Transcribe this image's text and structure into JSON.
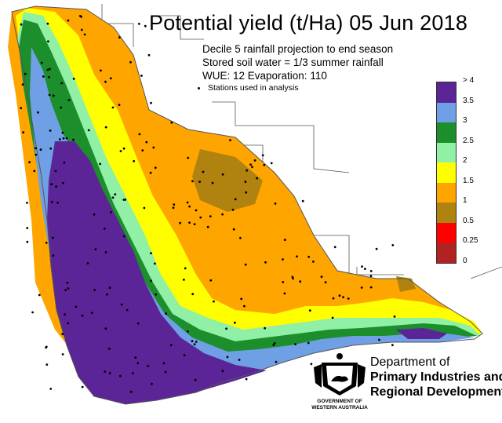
{
  "map": {
    "title": "Potential yield (t/Ha) 05 Jun 2018",
    "subtitle_1": "Decile 5 rainfall projection to end season",
    "subtitle_2": "Stored soil water = 1/3 summer rainfall",
    "subtitle_3": "WUE:  12    Evaporation:  110",
    "stations_note": "Stations used in analysis",
    "region": "South-west Western Australia grainbelt"
  },
  "legend": {
    "labels": [
      "> 4",
      "3.5",
      "3",
      "2.5",
      "2",
      "1.5",
      "1",
      "0.5",
      "0.25",
      "0"
    ],
    "colors": [
      "#5b2597",
      "#6f9fe4",
      "#1c8e2b",
      "#8ff0a6",
      "#ffff00",
      "#ffa500",
      "#b0820f",
      "#ff0000",
      "#b22222"
    ]
  },
  "colors": {
    "purple": "#5b2597",
    "blue": "#6f9fe4",
    "green": "#1c8e2b",
    "lightgreen": "#8ff0a6",
    "yellow": "#ffff00",
    "orange": "#ffa500",
    "brown": "#b0820f",
    "outline": "#666666"
  },
  "logo": {
    "govt_line1": "GOVERNMENT OF",
    "govt_line2": "WESTERN AUSTRALIA",
    "dept_line1": "Department of",
    "dept_line2": "Primary Industries and",
    "dept_line3": "Regional Development",
    "crest_icon": "wa-government-crest-icon"
  }
}
